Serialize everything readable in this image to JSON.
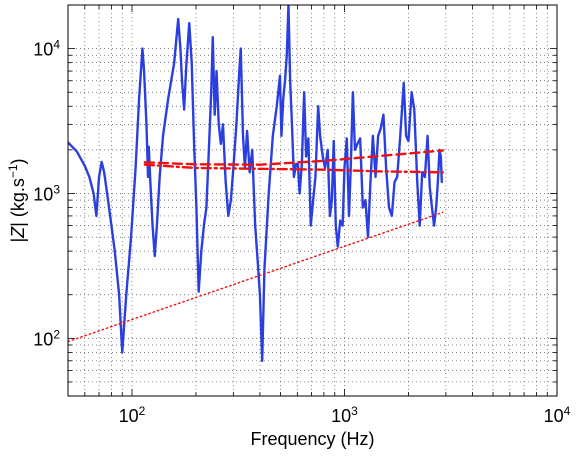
{
  "chart_data": {
    "type": "line",
    "title": "",
    "xlabel": "Frequency (Hz)",
    "ylabel_parts": {
      "a": "|",
      "var": "Z",
      "b": "|  (kg.s",
      "sup": "−1",
      "c": ")"
    },
    "xscale": "log",
    "yscale": "log",
    "xlim": [
      50,
      10000
    ],
    "ylim": [
      40,
      20000
    ],
    "grid": true,
    "grid_style": "dotted",
    "x_tick_labels": [
      {
        "base": "10",
        "exp": "2"
      },
      {
        "base": "10",
        "exp": "3"
      },
      {
        "base": "10",
        "exp": "4"
      }
    ],
    "y_tick_labels": [
      {
        "base": "10",
        "exp": "2"
      },
      {
        "base": "10",
        "exp": "3"
      },
      {
        "base": "10",
        "exp": "4"
      }
    ],
    "series": [
      {
        "style": "solid",
        "color": "#2b3fe0",
        "points": [
          [
            50,
            2250
          ],
          [
            55,
            1950
          ],
          [
            60,
            1550
          ],
          [
            63,
            1300
          ],
          [
            66,
            1000
          ],
          [
            68,
            700
          ],
          [
            70,
            1300
          ],
          [
            72,
            1650
          ],
          [
            74,
            1400
          ],
          [
            78,
            800
          ],
          [
            83,
            400
          ],
          [
            87,
            200
          ],
          [
            90,
            80
          ],
          [
            94,
            200
          ],
          [
            99,
            500
          ],
          [
            104,
            1500
          ],
          [
            108,
            4500
          ],
          [
            112,
            10000
          ],
          [
            114,
            7000
          ],
          [
            117,
            3000
          ],
          [
            119,
            1300
          ],
          [
            120,
            2100
          ],
          [
            122,
            1200
          ],
          [
            125,
            600
          ],
          [
            128,
            370
          ],
          [
            131,
            600
          ],
          [
            135,
            1300
          ],
          [
            140,
            2500
          ],
          [
            148,
            4500
          ],
          [
            158,
            8000
          ],
          [
            165,
            16000
          ],
          [
            169,
            10000
          ],
          [
            172,
            6000
          ],
          [
            176,
            3800
          ],
          [
            180,
            7500
          ],
          [
            186,
            15000
          ],
          [
            191,
            8000
          ],
          [
            196,
            2200
          ],
          [
            201,
            800
          ],
          [
            206,
            210
          ],
          [
            212,
            400
          ],
          [
            218,
            600
          ],
          [
            224,
            800
          ],
          [
            230,
            2000
          ],
          [
            236,
            5000
          ],
          [
            240,
            12000
          ],
          [
            245,
            3500
          ],
          [
            250,
            7000
          ],
          [
            256,
            3000
          ],
          [
            262,
            2200
          ],
          [
            268,
            3000
          ],
          [
            276,
            1200
          ],
          [
            284,
            700
          ],
          [
            292,
            900
          ],
          [
            300,
            1500
          ],
          [
            310,
            3000
          ],
          [
            320,
            7000
          ],
          [
            325,
            10000
          ],
          [
            333,
            2500
          ],
          [
            340,
            1500
          ],
          [
            348,
            2700
          ],
          [
            358,
            1400
          ],
          [
            368,
            2000
          ],
          [
            380,
            600
          ],
          [
            390,
            350
          ],
          [
            400,
            200
          ],
          [
            410,
            70
          ],
          [
            420,
            300
          ],
          [
            440,
            1000
          ],
          [
            460,
            2500
          ],
          [
            480,
            4000
          ],
          [
            497,
            6500
          ],
          [
            505,
            2500
          ],
          [
            515,
            4500
          ],
          [
            525,
            6000
          ],
          [
            535,
            9000
          ],
          [
            545,
            20000
          ],
          [
            555,
            6000
          ],
          [
            566,
            3000
          ],
          [
            578,
            1300
          ],
          [
            592,
            1600
          ],
          [
            604,
            1600
          ],
          [
            615,
            1000
          ],
          [
            630,
            1600
          ],
          [
            646,
            5000
          ],
          [
            660,
            1800
          ],
          [
            676,
            2400
          ],
          [
            694,
            600
          ],
          [
            712,
            900
          ],
          [
            730,
            1300
          ],
          [
            752,
            4000
          ],
          [
            768,
            2500
          ],
          [
            790,
            1800
          ],
          [
            810,
            1500
          ],
          [
            834,
            2000
          ],
          [
            854,
            700
          ],
          [
            872,
            900
          ],
          [
            890,
            2300
          ],
          [
            910,
            600
          ],
          [
            930,
            430
          ],
          [
            955,
            650
          ],
          [
            980,
            600
          ],
          [
            1000,
            1500
          ],
          [
            1025,
            2400
          ],
          [
            1050,
            700
          ],
          [
            1070,
            1500
          ],
          [
            1095,
            5000
          ],
          [
            1120,
            2000
          ],
          [
            1150,
            2200
          ],
          [
            1185,
            2400
          ],
          [
            1220,
            800
          ],
          [
            1255,
            900
          ],
          [
            1290,
            500
          ],
          [
            1325,
            1200
          ],
          [
            1360,
            2500
          ],
          [
            1400,
            1300
          ],
          [
            1440,
            2500
          ],
          [
            1480,
            2800
          ],
          [
            1525,
            3500
          ],
          [
            1570,
            1500
          ],
          [
            1620,
            800
          ],
          [
            1670,
            700
          ],
          [
            1720,
            1200
          ],
          [
            1770,
            1300
          ],
          [
            1830,
            2500
          ],
          [
            1900,
            5800
          ],
          [
            1950,
            2500
          ],
          [
            2000,
            2300
          ],
          [
            2070,
            5000
          ],
          [
            2130,
            3800
          ],
          [
            2200,
            1200
          ],
          [
            2260,
            600
          ],
          [
            2320,
            1400
          ],
          [
            2390,
            1300
          ],
          [
            2460,
            2500
          ],
          [
            2520,
            1100
          ],
          [
            2580,
            800
          ],
          [
            2640,
            600
          ],
          [
            2700,
            800
          ],
          [
            2750,
            1200
          ],
          [
            2800,
            2000
          ],
          [
            2840,
            1800
          ],
          [
            2870,
            1200
          ]
        ]
      },
      {
        "style": "dashed",
        "color": "#ee1111",
        "points": [
          [
            115,
            1640
          ],
          [
            200,
            1590
          ],
          [
            400,
            1580
          ],
          [
            800,
            1680
          ],
          [
            1500,
            1820
          ],
          [
            2900,
            1980
          ]
        ]
      },
      {
        "style": "dashdot",
        "color": "#ee1111",
        "points": [
          [
            115,
            1580
          ],
          [
            200,
            1500
          ],
          [
            400,
            1480
          ],
          [
            800,
            1460
          ],
          [
            1500,
            1420
          ],
          [
            2900,
            1400
          ]
        ]
      },
      {
        "style": "dotted",
        "color": "#ee1111",
        "points": [
          [
            50,
            95
          ],
          [
            2900,
            740
          ]
        ]
      }
    ]
  }
}
